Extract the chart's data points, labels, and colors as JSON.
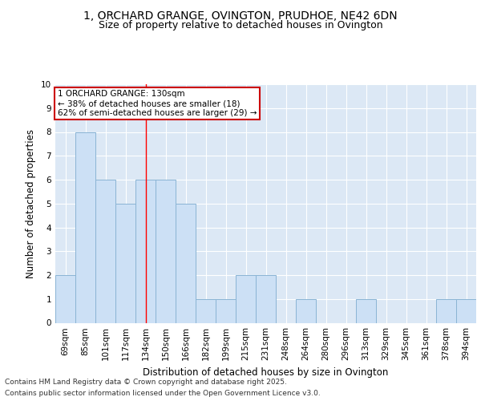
{
  "title": "1, ORCHARD GRANGE, OVINGTON, PRUDHOE, NE42 6DN",
  "subtitle": "Size of property relative to detached houses in Ovington",
  "xlabel": "Distribution of detached houses by size in Ovington",
  "ylabel": "Number of detached properties",
  "categories": [
    "69sqm",
    "85sqm",
    "101sqm",
    "117sqm",
    "134sqm",
    "150sqm",
    "166sqm",
    "182sqm",
    "199sqm",
    "215sqm",
    "231sqm",
    "248sqm",
    "264sqm",
    "280sqm",
    "296sqm",
    "313sqm",
    "329sqm",
    "345sqm",
    "361sqm",
    "378sqm",
    "394sqm"
  ],
  "values": [
    2,
    8,
    6,
    5,
    6,
    6,
    5,
    1,
    1,
    2,
    2,
    0,
    1,
    0,
    0,
    1,
    0,
    0,
    0,
    1,
    1
  ],
  "bar_color": "#cce0f5",
  "bar_edge_color": "#8ab4d4",
  "background_color": "#dce8f5",
  "grid_color": "#ffffff",
  "red_line_x": 4,
  "annotation_line1": "1 ORCHARD GRANGE: 130sqm",
  "annotation_line2": "← 38% of detached houses are smaller (18)",
  "annotation_line3": "62% of semi-detached houses are larger (29) →",
  "annotation_box_color": "#ffffff",
  "annotation_box_edge_color": "#cc0000",
  "ylim": [
    0,
    10
  ],
  "yticks": [
    0,
    1,
    2,
    3,
    4,
    5,
    6,
    7,
    8,
    9,
    10
  ],
  "footer_line1": "Contains HM Land Registry data © Crown copyright and database right 2025.",
  "footer_line2": "Contains public sector information licensed under the Open Government Licence v3.0.",
  "title_fontsize": 10,
  "subtitle_fontsize": 9,
  "axis_label_fontsize": 8.5,
  "tick_fontsize": 7.5,
  "annotation_fontsize": 7.5,
  "footer_fontsize": 6.5
}
